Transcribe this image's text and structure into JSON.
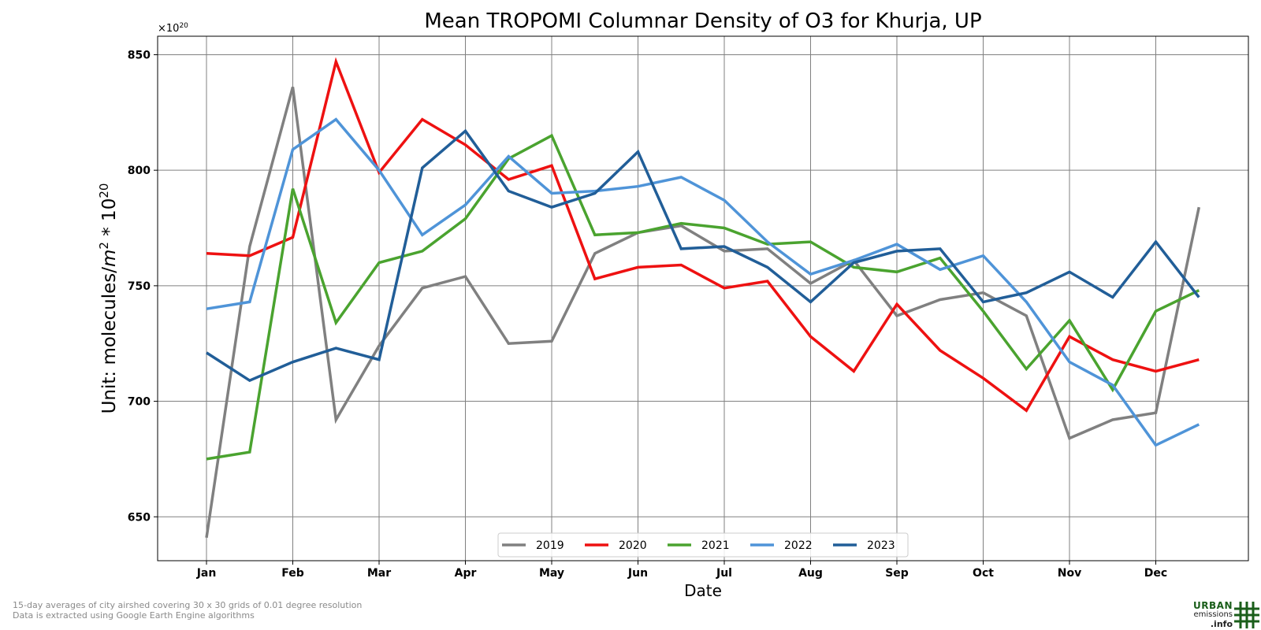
{
  "chart_data": {
    "type": "line",
    "title": "Mean TROPOMI Columnar Density of O3 for Khurja, UP",
    "xlabel": "Date",
    "ylabel": "Unit: molecules/m² * 10²⁰",
    "ylabel_base": "Unit: molecules/",
    "ylabel_m": "m",
    "ylabel_m_exp": "2",
    "ylabel_mult": " * 10",
    "ylabel_mult_exp": "20",
    "offset_label": "×10",
    "offset_exp": "20",
    "categories": [
      "Jan",
      "Jan-16",
      "Feb",
      "Feb-16",
      "Mar",
      "Mar-16",
      "Apr",
      "Apr-16",
      "May",
      "May-16",
      "Jun",
      "Jun-16",
      "Jul",
      "Jul-16",
      "Aug",
      "Aug-16",
      "Sep",
      "Sep-16",
      "Oct",
      "Oct-16",
      "Nov",
      "Nov-16",
      "Dec",
      "Dec-16"
    ],
    "tick_labels": [
      "Jan",
      "Feb",
      "Mar",
      "Apr",
      "May",
      "Jun",
      "Jul",
      "Aug",
      "Sep",
      "Oct",
      "Nov",
      "Dec"
    ],
    "yticks": [
      650,
      700,
      750,
      800,
      850
    ],
    "ylim": [
      631,
      858
    ],
    "grid": true,
    "legend_placement": "bottom-center",
    "series": [
      {
        "name": "2019",
        "color": "#808080",
        "values": [
          641,
          767,
          836,
          692,
          724,
          749,
          754,
          725,
          726,
          764,
          773,
          776,
          765,
          766,
          751,
          761,
          737,
          744,
          747,
          737,
          684,
          692,
          695,
          784
        ]
      },
      {
        "name": "2020",
        "color": "#ee1111",
        "values": [
          764,
          763,
          771,
          847,
          799,
          822,
          811,
          796,
          802,
          753,
          758,
          759,
          749,
          752,
          728,
          713,
          742,
          722,
          710,
          696,
          728,
          718,
          713,
          718
        ]
      },
      {
        "name": "2021",
        "color": "#4aa32f",
        "values": [
          675,
          678,
          792,
          734,
          760,
          765,
          779,
          805,
          815,
          772,
          773,
          777,
          775,
          768,
          769,
          758,
          756,
          762,
          739,
          714,
          735,
          705,
          739,
          748
        ]
      },
      {
        "name": "2022",
        "color": "#4f94d8",
        "values": [
          740,
          743,
          809,
          822,
          800,
          772,
          785,
          806,
          790,
          791,
          793,
          797,
          787,
          769,
          755,
          761,
          768,
          757,
          763,
          743,
          717,
          707,
          681,
          690
        ]
      },
      {
        "name": "2023",
        "color": "#215e98",
        "values": [
          721,
          709,
          717,
          723,
          718,
          801,
          817,
          791,
          784,
          790,
          808,
          766,
          767,
          758,
          743,
          760,
          765,
          766,
          743,
          747,
          756,
          745,
          769,
          745
        ]
      }
    ]
  },
  "footnotes": [
    "15-day averages of city airshed covering 30 x 30 grids of 0.01 degree resolution",
    "Data is extracted using Google Earth Engine algorithms"
  ],
  "logo": {
    "line1": "URBAN",
    "line2": "emissions",
    "line3": ".info",
    "color": "#1a5e1a"
  }
}
